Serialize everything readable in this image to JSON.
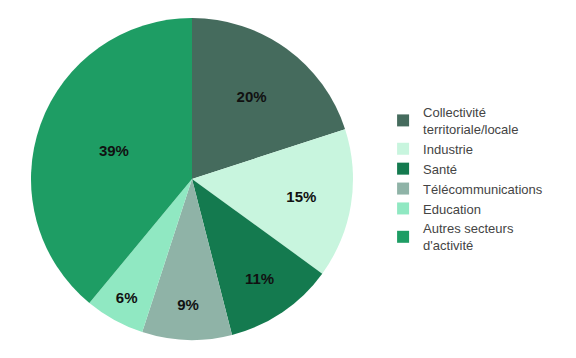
{
  "chart_data": {
    "type": "pie",
    "categories": [
      "Collectivité territoriale/locale",
      "Industrie",
      "Santé",
      "Télécommunications",
      "Education",
      "Autres secteurs d'activité"
    ],
    "values": [
      20,
      15,
      11,
      9,
      6,
      39
    ],
    "value_labels": [
      "20%",
      "15%",
      "11%",
      "9%",
      "6%",
      "39%"
    ],
    "colors": [
      "#456b5d",
      "#c8f5de",
      "#147a4f",
      "#8fb3a7",
      "#90e8c2",
      "#1e9d64"
    ],
    "data_labels": true,
    "legend": "right"
  }
}
